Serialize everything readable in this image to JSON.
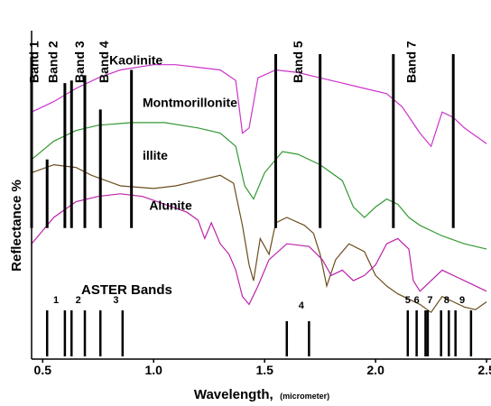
{
  "chart_data": {
    "type": "line",
    "xlabel": "Wavelength,",
    "xlabel_unit": "(micrometer)",
    "ylabel": "Reflectance %",
    "xlim": [
      0.45,
      2.52
    ],
    "ylim": [
      0,
      100
    ],
    "grid": false,
    "x_ticks": [
      {
        "value": 0.5,
        "label": "0.5"
      },
      {
        "value": 1.0,
        "label": "1.0"
      },
      {
        "value": 1.5,
        "label": "1.5"
      },
      {
        "value": 2.0,
        "label": "2.0"
      },
      {
        "value": 2.5,
        "label": "2.5"
      }
    ],
    "series": [
      {
        "name": "Kaolinite",
        "color": "#cc33cc",
        "name_at": [
          0.8,
          96
        ],
        "points": [
          [
            0.45,
            78
          ],
          [
            0.55,
            82
          ],
          [
            0.65,
            87
          ],
          [
            0.75,
            91
          ],
          [
            0.85,
            94
          ],
          [
            1.0,
            96
          ],
          [
            1.1,
            96
          ],
          [
            1.2,
            95
          ],
          [
            1.3,
            94
          ],
          [
            1.37,
            90
          ],
          [
            1.4,
            70
          ],
          [
            1.43,
            72
          ],
          [
            1.47,
            91
          ],
          [
            1.55,
            94
          ],
          [
            1.65,
            93
          ],
          [
            1.75,
            91
          ],
          [
            1.85,
            89
          ],
          [
            1.95,
            87
          ],
          [
            2.05,
            85
          ],
          [
            2.12,
            80
          ],
          [
            2.16,
            75
          ],
          [
            2.2,
            70
          ],
          [
            2.25,
            65
          ],
          [
            2.3,
            78
          ],
          [
            2.35,
            76
          ],
          [
            2.4,
            72
          ],
          [
            2.45,
            69
          ],
          [
            2.5,
            66
          ]
        ]
      },
      {
        "name": "Montmorillonite",
        "color": "#339933",
        "name_at": [
          0.95,
          80
        ],
        "points": [
          [
            0.45,
            60
          ],
          [
            0.55,
            67
          ],
          [
            0.65,
            71
          ],
          [
            0.75,
            73
          ],
          [
            0.9,
            74
          ],
          [
            1.05,
            74
          ],
          [
            1.2,
            72
          ],
          [
            1.3,
            70
          ],
          [
            1.37,
            65
          ],
          [
            1.41,
            50
          ],
          [
            1.45,
            45
          ],
          [
            1.5,
            55
          ],
          [
            1.58,
            63
          ],
          [
            1.65,
            62
          ],
          [
            1.75,
            58
          ],
          [
            1.85,
            52
          ],
          [
            1.9,
            42
          ],
          [
            1.95,
            38
          ],
          [
            2.0,
            42
          ],
          [
            2.05,
            45
          ],
          [
            2.1,
            43
          ],
          [
            2.15,
            38
          ],
          [
            2.2,
            35
          ],
          [
            2.3,
            31
          ],
          [
            2.4,
            28
          ],
          [
            2.5,
            26
          ]
        ]
      },
      {
        "name": "illite",
        "color": "#6b4d1e",
        "name_at": [
          0.95,
          60
        ],
        "points": [
          [
            0.45,
            55
          ],
          [
            0.55,
            58
          ],
          [
            0.65,
            57
          ],
          [
            0.72,
            54
          ],
          [
            0.85,
            50
          ],
          [
            1.0,
            49
          ],
          [
            1.1,
            50
          ],
          [
            1.2,
            52
          ],
          [
            1.3,
            54
          ],
          [
            1.36,
            51
          ],
          [
            1.4,
            35
          ],
          [
            1.43,
            20
          ],
          [
            1.45,
            14
          ],
          [
            1.48,
            30
          ],
          [
            1.52,
            24
          ],
          [
            1.55,
            36
          ],
          [
            1.6,
            38
          ],
          [
            1.68,
            35
          ],
          [
            1.72,
            32
          ],
          [
            1.75,
            24
          ],
          [
            1.78,
            12
          ],
          [
            1.82,
            22
          ],
          [
            1.88,
            28
          ],
          [
            1.95,
            25
          ],
          [
            2.0,
            16
          ],
          [
            2.05,
            12
          ],
          [
            2.1,
            9
          ],
          [
            2.15,
            7
          ],
          [
            2.2,
            5
          ],
          [
            2.25,
            2
          ],
          [
            2.3,
            8
          ],
          [
            2.35,
            6
          ],
          [
            2.4,
            4
          ],
          [
            2.45,
            3
          ],
          [
            2.5,
            6
          ]
        ]
      },
      {
        "name": "Alunite",
        "color": "#bb22aa",
        "name_at": [
          0.98,
          41
        ],
        "points": [
          [
            0.45,
            28
          ],
          [
            0.55,
            38
          ],
          [
            0.65,
            44
          ],
          [
            0.75,
            46
          ],
          [
            0.85,
            47
          ],
          [
            0.95,
            46
          ],
          [
            1.05,
            43
          ],
          [
            1.15,
            40
          ],
          [
            1.2,
            37
          ],
          [
            1.23,
            30
          ],
          [
            1.26,
            36
          ],
          [
            1.3,
            28
          ],
          [
            1.34,
            24
          ],
          [
            1.37,
            18
          ],
          [
            1.4,
            8
          ],
          [
            1.43,
            5
          ],
          [
            1.47,
            12
          ],
          [
            1.52,
            22
          ],
          [
            1.6,
            28
          ],
          [
            1.7,
            27
          ],
          [
            1.76,
            22
          ],
          [
            1.8,
            16
          ],
          [
            1.85,
            18
          ],
          [
            1.9,
            14
          ],
          [
            1.95,
            16
          ],
          [
            2.0,
            20
          ],
          [
            2.05,
            28
          ],
          [
            2.1,
            30
          ],
          [
            2.15,
            26
          ],
          [
            2.17,
            14
          ],
          [
            2.2,
            10
          ],
          [
            2.3,
            18
          ],
          [
            2.4,
            14
          ],
          [
            2.5,
            10
          ]
        ]
      }
    ],
    "tm_bands": {
      "lines": [
        {
          "x": 0.45,
          "y_top": 99
        },
        {
          "x": 0.52,
          "y_top": 60
        },
        {
          "x": 0.6,
          "y_top": 89
        },
        {
          "x": 0.63,
          "y_top": 90
        },
        {
          "x": 0.69,
          "y_top": 92
        },
        {
          "x": 0.76,
          "y_top": 79
        },
        {
          "x": 0.9,
          "y_top": 94
        },
        {
          "x": 1.55,
          "y_top": 100
        },
        {
          "x": 1.75,
          "y_top": 100
        },
        {
          "x": 2.08,
          "y_top": 100
        },
        {
          "x": 2.35,
          "y_top": 100
        }
      ],
      "labels": [
        {
          "text": "Band 1",
          "x": 0.46
        },
        {
          "text": "Band 2",
          "x": 0.545
        },
        {
          "text": "Band 3",
          "x": 0.665
        },
        {
          "text": "Band 4",
          "x": 0.775
        },
        {
          "text": "Band 5",
          "x": 1.65
        },
        {
          "text": "Band 7",
          "x": 2.16
        }
      ]
    },
    "aster_bands": {
      "title": "ASTER Bands",
      "lines": [
        0.52,
        0.6,
        0.63,
        0.69,
        0.76,
        0.86,
        1.6,
        1.7,
        2.145,
        2.185,
        2.225,
        2.235,
        2.295,
        2.33,
        2.36,
        2.43
      ],
      "labels": [
        {
          "text": "1",
          "x": 0.56
        },
        {
          "text": "2",
          "x": 0.66
        },
        {
          "text": "3",
          "x": 0.83
        },
        {
          "text": "4",
          "x": 1.665
        },
        {
          "text": "5",
          "x": 2.145
        },
        {
          "text": "6",
          "x": 2.185
        },
        {
          "text": "7",
          "x": 2.245
        },
        {
          "text": "8",
          "x": 2.32
        },
        {
          "text": "9",
          "x": 2.39
        }
      ]
    }
  }
}
